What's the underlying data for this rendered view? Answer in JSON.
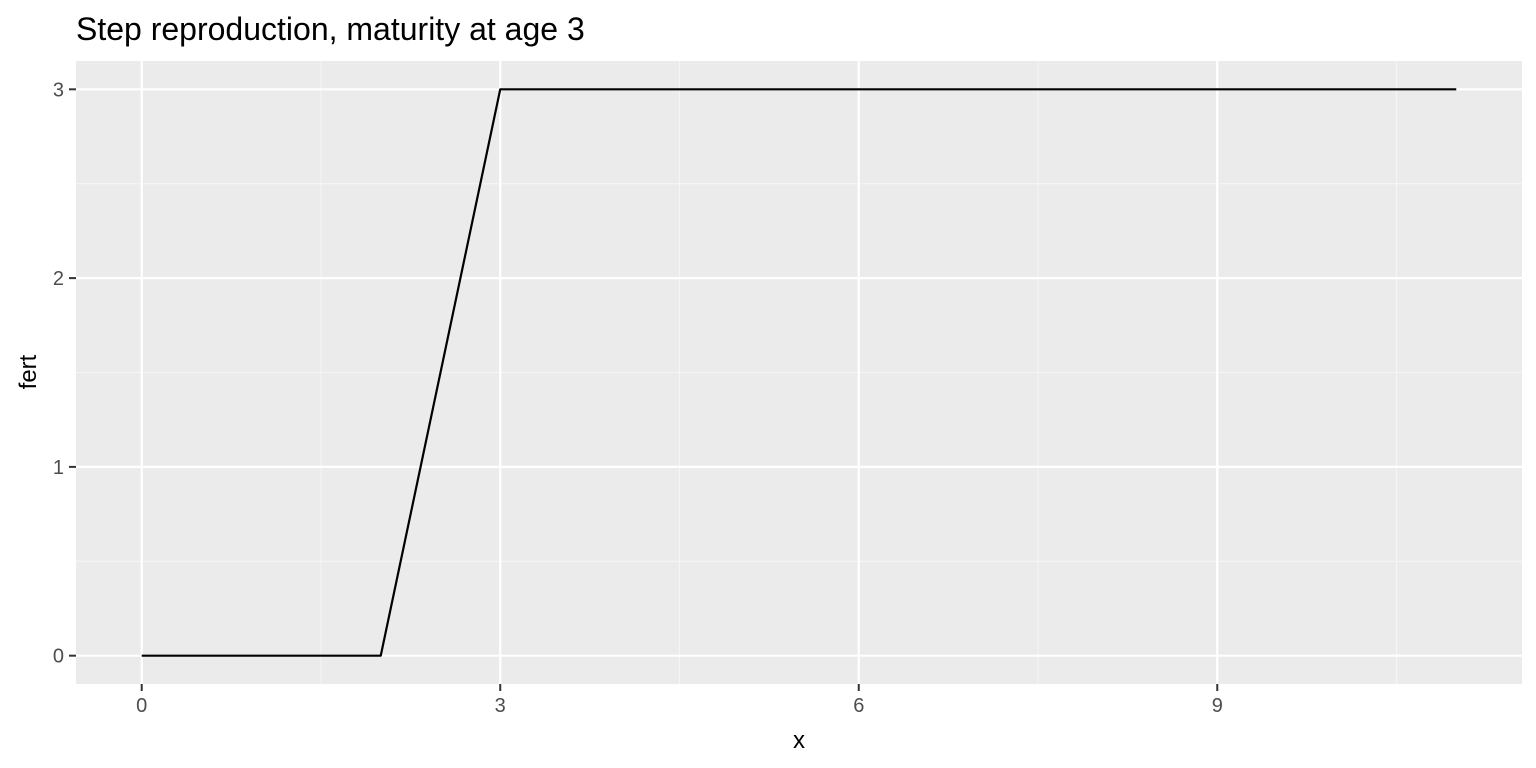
{
  "chart_data": {
    "type": "line",
    "title": "Step reproduction, maturity at age 3",
    "xlabel": "x",
    "ylabel": "fert",
    "x": [
      0,
      1,
      2,
      3,
      4,
      5,
      6,
      7,
      8,
      9,
      10,
      11
    ],
    "series": [
      {
        "values": [
          0,
          0,
          0,
          3,
          3,
          3,
          3,
          3,
          3,
          3,
          3,
          3
        ]
      }
    ],
    "xlim": [
      -0.55,
      11.55
    ],
    "ylim": [
      -0.15,
      3.15
    ],
    "x_ticks": [
      0,
      3,
      6,
      9
    ],
    "x_tick_labels": [
      "0",
      "3",
      "6",
      "9"
    ],
    "y_ticks": [
      0,
      1,
      2,
      3
    ],
    "y_tick_labels": [
      "0",
      "1",
      "2",
      "3"
    ],
    "grid": true,
    "legend": "none",
    "colors": {
      "panel_background": "#ebebeb",
      "grid_major": "#ffffff",
      "grid_minor": "#f5f5f5",
      "line": "#000000",
      "tick_mark": "#333333"
    }
  }
}
